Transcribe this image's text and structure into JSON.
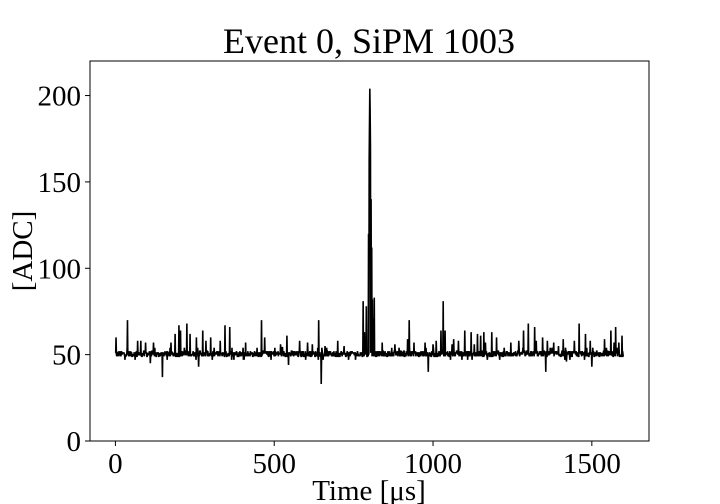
{
  "chart_data": {
    "type": "line",
    "title": "Event 0, SiPM 1003",
    "xlabel": "Time [μs]",
    "ylabel": "[ADC]",
    "xlim": [
      -80,
      1680
    ],
    "ylim": [
      0,
      220
    ],
    "xticks": [
      0,
      500,
      1000,
      1500
    ],
    "yticks": [
      0,
      50,
      100,
      150,
      200
    ],
    "grid": false,
    "legend": "none",
    "series": [
      {
        "color": "#000000",
        "baseline": 50,
        "x_range": [
          0,
          1600
        ],
        "spikes": [
          [
            2,
            60
          ],
          [
            38,
            70
          ],
          [
            70,
            58
          ],
          [
            80,
            58
          ],
          [
            95,
            57
          ],
          [
            110,
            45
          ],
          [
            120,
            57
          ],
          [
            148,
            37
          ],
          [
            175,
            57
          ],
          [
            188,
            62
          ],
          [
            200,
            67
          ],
          [
            205,
            64
          ],
          [
            225,
            68
          ],
          [
            235,
            62
          ],
          [
            255,
            60
          ],
          [
            262,
            43
          ],
          [
            275,
            64
          ],
          [
            285,
            58
          ],
          [
            300,
            60
          ],
          [
            330,
            58
          ],
          [
            345,
            67
          ],
          [
            360,
            66
          ],
          [
            410,
            57
          ],
          [
            460,
            70
          ],
          [
            470,
            60
          ],
          [
            520,
            56
          ],
          [
            540,
            61
          ],
          [
            545,
            44
          ],
          [
            580,
            58
          ],
          [
            605,
            57
          ],
          [
            620,
            56
          ],
          [
            640,
            70
          ],
          [
            648,
            33
          ],
          [
            660,
            55
          ],
          [
            700,
            58
          ],
          [
            720,
            55
          ],
          [
            780,
            81
          ],
          [
            784,
            63
          ],
          [
            790,
            78
          ],
          [
            797,
            120
          ],
          [
            799,
            163
          ],
          [
            800,
            184
          ],
          [
            801,
            204
          ],
          [
            802,
            190
          ],
          [
            803,
            170
          ],
          [
            805,
            140
          ],
          [
            807,
            112
          ],
          [
            809,
            82
          ],
          [
            812,
            71
          ],
          [
            815,
            83
          ],
          [
            840,
            57
          ],
          [
            880,
            56
          ],
          [
            920,
            59
          ],
          [
            925,
            70
          ],
          [
            940,
            57
          ],
          [
            975,
            57
          ],
          [
            985,
            40
          ],
          [
            1000,
            56
          ],
          [
            1010,
            58
          ],
          [
            1025,
            64
          ],
          [
            1032,
            81
          ],
          [
            1038,
            64
          ],
          [
            1060,
            56
          ],
          [
            1065,
            59
          ],
          [
            1080,
            58
          ],
          [
            1100,
            64
          ],
          [
            1120,
            63
          ],
          [
            1130,
            56
          ],
          [
            1140,
            62
          ],
          [
            1150,
            61
          ],
          [
            1160,
            63
          ],
          [
            1165,
            57
          ],
          [
            1185,
            63
          ],
          [
            1200,
            60
          ],
          [
            1210,
            47
          ],
          [
            1245,
            57
          ],
          [
            1270,
            58
          ],
          [
            1285,
            64
          ],
          [
            1300,
            68
          ],
          [
            1320,
            66
          ],
          [
            1325,
            58
          ],
          [
            1345,
            60
          ],
          [
            1355,
            40
          ],
          [
            1360,
            58
          ],
          [
            1380,
            57
          ],
          [
            1395,
            55
          ],
          [
            1410,
            59
          ],
          [
            1420,
            46
          ],
          [
            1445,
            58
          ],
          [
            1460,
            68
          ],
          [
            1480,
            62
          ],
          [
            1495,
            58
          ],
          [
            1500,
            43
          ],
          [
            1540,
            59
          ],
          [
            1560,
            64
          ],
          [
            1570,
            57
          ],
          [
            1575,
            66
          ],
          [
            1585,
            57
          ],
          [
            1595,
            61
          ]
        ]
      }
    ]
  }
}
